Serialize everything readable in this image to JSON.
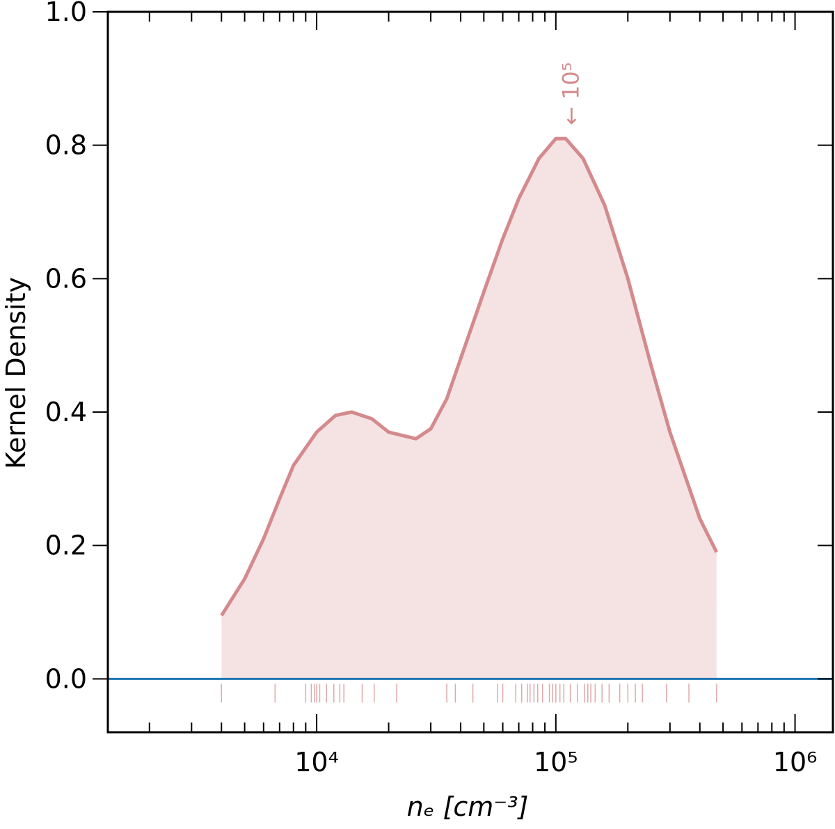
{
  "chart_data": {
    "type": "kde",
    "x_label": "nₑ [cm⁻³]",
    "y_label": "Kernel Density",
    "annotation": {
      "text": "← 10⁵",
      "x": 115000,
      "y": 0.83
    },
    "x": [
      4000,
      5000,
      6000,
      7000,
      8000,
      10000,
      12000,
      14000,
      17000,
      20000,
      26000,
      30000,
      35000,
      40000,
      50000,
      60000,
      70000,
      85000,
      100000,
      110000,
      130000,
      160000,
      200000,
      250000,
      300000,
      400000,
      470000
    ],
    "series": [
      {
        "color": "#d48a8c",
        "fill": "#f5e3e4",
        "values": [
          0.095,
          0.15,
          0.21,
          0.27,
          0.32,
          0.37,
          0.395,
          0.4,
          0.39,
          0.37,
          0.36,
          0.375,
          0.42,
          0.48,
          0.58,
          0.66,
          0.72,
          0.78,
          0.81,
          0.81,
          0.78,
          0.71,
          0.6,
          0.47,
          0.37,
          0.24,
          0.19
        ]
      }
    ],
    "rug": {
      "color": "#e0a8aa",
      "values": [
        4000,
        6700,
        9000,
        9500,
        9800,
        10000,
        10300,
        11000,
        11800,
        12500,
        13000,
        15500,
        17400,
        21600,
        35000,
        38000,
        45000,
        57000,
        60000,
        68000,
        72000,
        76000,
        78000,
        81000,
        84000,
        88000,
        94000,
        97000,
        100000,
        104000,
        108000,
        115000,
        123000,
        132000,
        136000,
        140000,
        146000,
        156000,
        167000,
        185000,
        200000,
        215000,
        230000,
        290000,
        360000,
        470000
      ]
    },
    "hline": {
      "value": 0,
      "color": "#1f77b4"
    },
    "xscale": "log",
    "xlim": [
      1340,
      1440000
    ],
    "ylim": [
      -0.08,
      1.0
    ],
    "xticks": [
      {
        "value": 10000,
        "label": "10⁴"
      },
      {
        "value": 100000,
        "label": "10⁵"
      },
      {
        "value": 1000000,
        "label": "10⁶"
      }
    ],
    "xminorticks": [
      2000,
      3000,
      4000,
      5000,
      6000,
      7000,
      8000,
      9000,
      20000,
      30000,
      40000,
      50000,
      60000,
      70000,
      80000,
      90000,
      200000,
      300000,
      400000,
      500000,
      600000,
      700000,
      800000,
      900000
    ],
    "yticks": [
      {
        "value": 0,
        "label": "0.0"
      },
      {
        "value": 0.2,
        "label": "0.2"
      },
      {
        "value": 0.4,
        "label": "0.4"
      },
      {
        "value": 0.6,
        "label": "0.6"
      },
      {
        "value": 0.8,
        "label": "0.8"
      },
      {
        "value": 1.0,
        "label": "1.0"
      }
    ]
  }
}
